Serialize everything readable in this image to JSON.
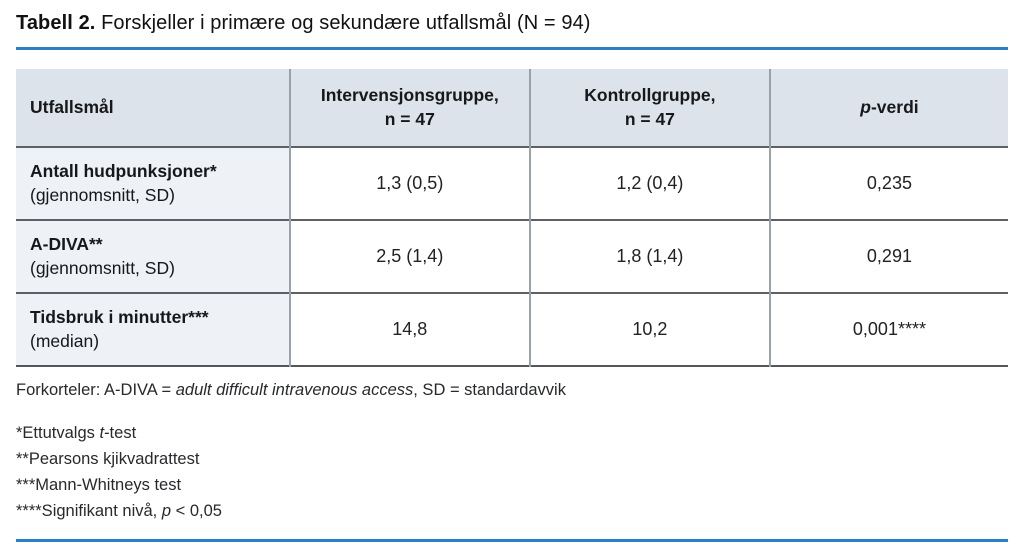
{
  "title": {
    "bold": "Tabell 2.",
    "rest": " Forskjeller i primære og sekundære utfallsmål (N = 94)"
  },
  "colors": {
    "accent_rule": "#2a80c4",
    "header_bg": "#dce3eb",
    "row_label_bg": "#eef1f6",
    "horizontal_border": "#5d6167",
    "vertical_border": "#9aa1a8"
  },
  "table": {
    "columns": [
      {
        "label": "Utfallsmål"
      },
      {
        "label": "Intervensjonsgruppe,",
        "sub": "n = 47"
      },
      {
        "label": "Kontrollgruppe,",
        "sub": "n = 47"
      },
      {
        "italic": "p",
        "post": "-verdi"
      }
    ],
    "rows": [
      {
        "name": "Antall hudpunksjoner*",
        "sub": "(gjennomsnitt, SD)",
        "intervention": "1,3 (0,5)",
        "control": "1,2 (0,4)",
        "p": "0,235"
      },
      {
        "name": "A-DIVA**",
        "sub": "(gjennomsnitt, SD)",
        "intervention": "2,5 (1,4)",
        "control": "1,8 (1,4)",
        "p": "0,291"
      },
      {
        "name": "Tidsbruk i minutter***",
        "sub": "(median)",
        "intervention": "14,8",
        "control": "10,2",
        "p": "0,001****"
      }
    ]
  },
  "footnotes": {
    "abbreviations": {
      "pre": "Forkorteler: A-DIVA = ",
      "italic": "adult difficult intravenous access",
      "post": ", SD = standardavvik"
    },
    "fn1": {
      "pre": "*Ettutvalgs ",
      "italic": "t",
      "post": "-test"
    },
    "fn2": {
      "pre": "**Pearsons kjikvadrattest",
      "italic": "",
      "post": ""
    },
    "fn3": {
      "pre": "***Mann-Whitneys test",
      "italic": "",
      "post": ""
    },
    "fn4": {
      "pre": "****Signifikant nivå, ",
      "italic": "p",
      "post": " < 0,05"
    }
  }
}
